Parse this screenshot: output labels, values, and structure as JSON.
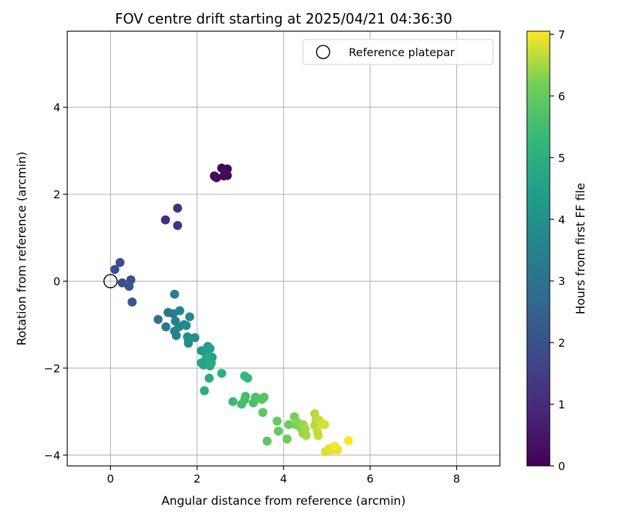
{
  "chart_data": {
    "type": "scatter",
    "title": "FOV centre drift starting at 2025/04/21 04:36:30",
    "xlabel": "Angular distance from reference (arcmin)",
    "ylabel": "Rotation from reference (arcmin)",
    "xlim": [
      -1,
      9
    ],
    "ylim": [
      -4.25,
      5.75
    ],
    "xticks": [
      0,
      2,
      4,
      6,
      8
    ],
    "yticks": [
      -4,
      -2,
      0,
      2,
      4
    ],
    "xtick_labels": [
      "0",
      "2",
      "4",
      "6",
      "8"
    ],
    "ytick_labels": [
      "−4",
      "−2",
      "0",
      "2",
      "4"
    ],
    "grid": true,
    "legend": {
      "placement": "top-right",
      "entries": [
        "Reference platepar"
      ]
    },
    "reference_point": {
      "name": "Reference platepar",
      "x": 0,
      "y": 0,
      "marker": "hollow-circle"
    },
    "colorbar": {
      "label": "Hours from first FF file",
      "colormap": "viridis",
      "range": [
        0,
        7.05
      ],
      "ticks": [
        0,
        1,
        2,
        3,
        4,
        5,
        6,
        7
      ],
      "tick_labels": [
        "0",
        "1",
        "2",
        "3",
        "4",
        "5",
        "6",
        "7"
      ]
    },
    "points": [
      {
        "x": 2.4,
        "y": 2.42,
        "c": 0.05
      },
      {
        "x": 2.45,
        "y": 2.38,
        "c": 0.08
      },
      {
        "x": 2.57,
        "y": 2.6,
        "c": 0.1
      },
      {
        "x": 2.62,
        "y": 2.42,
        "c": 0.12
      },
      {
        "x": 2.7,
        "y": 2.58,
        "c": 0.15
      },
      {
        "x": 2.7,
        "y": 2.43,
        "c": 0.18
      },
      {
        "x": 2.65,
        "y": 2.5,
        "c": 0.2
      },
      {
        "x": 2.42,
        "y": 2.4,
        "c": 0.22
      },
      {
        "x": 1.27,
        "y": 1.41,
        "c": 1.0
      },
      {
        "x": 1.55,
        "y": 1.68,
        "c": 1.1
      },
      {
        "x": 1.55,
        "y": 1.28,
        "c": 1.2
      },
      {
        "x": 0.22,
        "y": 0.43,
        "c": 1.9
      },
      {
        "x": 0.1,
        "y": 0.27,
        "c": 1.95
      },
      {
        "x": 0.27,
        "y": -0.04,
        "c": 2.0
      },
      {
        "x": 0.47,
        "y": 0.03,
        "c": 2.05
      },
      {
        "x": 0.43,
        "y": -0.12,
        "c": 2.1
      },
      {
        "x": 0.5,
        "y": -0.48,
        "c": 2.2
      },
      {
        "x": 1.1,
        "y": -0.88,
        "c": 3.0
      },
      {
        "x": 1.28,
        "y": -1.05,
        "c": 3.1
      },
      {
        "x": 1.33,
        "y": -0.72,
        "c": 3.2
      },
      {
        "x": 1.45,
        "y": -0.75,
        "c": 3.3
      },
      {
        "x": 1.48,
        "y": -0.3,
        "c": 3.4
      },
      {
        "x": 1.5,
        "y": -0.92,
        "c": 3.4
      },
      {
        "x": 1.48,
        "y": -1.15,
        "c": 3.5
      },
      {
        "x": 1.52,
        "y": -1.25,
        "c": 3.5
      },
      {
        "x": 1.58,
        "y": -1.05,
        "c": 3.6
      },
      {
        "x": 1.6,
        "y": -0.68,
        "c": 3.6
      },
      {
        "x": 1.7,
        "y": -1.0,
        "c": 3.7
      },
      {
        "x": 1.75,
        "y": -1.02,
        "c": 3.7
      },
      {
        "x": 1.78,
        "y": -1.28,
        "c": 3.8
      },
      {
        "x": 1.83,
        "y": -0.82,
        "c": 3.8
      },
      {
        "x": 1.8,
        "y": -1.43,
        "c": 3.9
      },
      {
        "x": 1.95,
        "y": -1.3,
        "c": 3.9
      },
      {
        "x": 1.8,
        "y": -1.35,
        "c": 4.0
      },
      {
        "x": 2.1,
        "y": -1.6,
        "c": 4.3
      },
      {
        "x": 2.2,
        "y": -1.65,
        "c": 4.4
      },
      {
        "x": 2.25,
        "y": -1.5,
        "c": 4.4
      },
      {
        "x": 2.3,
        "y": -1.55,
        "c": 4.5
      },
      {
        "x": 2.35,
        "y": -1.75,
        "c": 4.5
      },
      {
        "x": 2.2,
        "y": -1.8,
        "c": 4.6
      },
      {
        "x": 2.28,
        "y": -1.9,
        "c": 4.6
      },
      {
        "x": 2.1,
        "y": -1.88,
        "c": 4.7
      },
      {
        "x": 2.15,
        "y": -1.93,
        "c": 4.7
      },
      {
        "x": 2.3,
        "y": -1.95,
        "c": 4.8
      },
      {
        "x": 2.33,
        "y": -1.88,
        "c": 4.8
      },
      {
        "x": 2.28,
        "y": -2.23,
        "c": 4.9
      },
      {
        "x": 2.17,
        "y": -2.52,
        "c": 4.9
      },
      {
        "x": 2.57,
        "y": -2.12,
        "c": 5.0
      },
      {
        "x": 2.25,
        "y": -1.75,
        "c": 4.8
      },
      {
        "x": 3.1,
        "y": -2.18,
        "c": 5.3
      },
      {
        "x": 3.17,
        "y": -2.23,
        "c": 5.3
      },
      {
        "x": 2.83,
        "y": -2.77,
        "c": 5.4
      },
      {
        "x": 3.03,
        "y": -2.83,
        "c": 5.5
      },
      {
        "x": 3.12,
        "y": -2.65,
        "c": 5.5
      },
      {
        "x": 3.1,
        "y": -2.73,
        "c": 5.6
      },
      {
        "x": 3.3,
        "y": -2.8,
        "c": 5.6
      },
      {
        "x": 3.35,
        "y": -2.67,
        "c": 5.7
      },
      {
        "x": 3.42,
        "y": -2.7,
        "c": 5.7
      },
      {
        "x": 3.5,
        "y": -2.72,
        "c": 5.8
      },
      {
        "x": 3.55,
        "y": -2.67,
        "c": 5.8
      },
      {
        "x": 3.52,
        "y": -3.02,
        "c": 5.9
      },
      {
        "x": 3.62,
        "y": -3.68,
        "c": 5.9
      },
      {
        "x": 3.85,
        "y": -3.22,
        "c": 6.0
      },
      {
        "x": 3.88,
        "y": -3.45,
        "c": 6.0
      },
      {
        "x": 4.08,
        "y": -3.63,
        "c": 6.1
      },
      {
        "x": 4.12,
        "y": -3.3,
        "c": 6.1
      },
      {
        "x": 4.25,
        "y": -3.12,
        "c": 6.2
      },
      {
        "x": 4.28,
        "y": -3.3,
        "c": 6.2
      },
      {
        "x": 4.32,
        "y": -3.25,
        "c": 6.3
      },
      {
        "x": 4.4,
        "y": -3.38,
        "c": 6.3
      },
      {
        "x": 4.45,
        "y": -3.3,
        "c": 6.4
      },
      {
        "x": 4.45,
        "y": -3.5,
        "c": 6.4
      },
      {
        "x": 4.5,
        "y": -3.4,
        "c": 6.5
      },
      {
        "x": 4.52,
        "y": -3.55,
        "c": 6.5
      },
      {
        "x": 4.72,
        "y": -3.05,
        "c": 6.6
      },
      {
        "x": 4.75,
        "y": -3.2,
        "c": 6.6
      },
      {
        "x": 4.72,
        "y": -3.32,
        "c": 6.6
      },
      {
        "x": 4.78,
        "y": -3.45,
        "c": 6.7
      },
      {
        "x": 4.8,
        "y": -3.55,
        "c": 6.7
      },
      {
        "x": 4.82,
        "y": -3.2,
        "c": 6.7
      },
      {
        "x": 4.9,
        "y": -3.28,
        "c": 6.8
      },
      {
        "x": 4.95,
        "y": -3.3,
        "c": 6.8
      },
      {
        "x": 4.97,
        "y": -3.92,
        "c": 6.8
      },
      {
        "x": 5.05,
        "y": -3.85,
        "c": 6.9
      },
      {
        "x": 5.12,
        "y": -3.88,
        "c": 6.9
      },
      {
        "x": 5.2,
        "y": -3.82,
        "c": 6.95
      },
      {
        "x": 5.25,
        "y": -3.88,
        "c": 6.9
      },
      {
        "x": 5.18,
        "y": -3.8,
        "c": 7.0
      },
      {
        "x": 5.5,
        "y": -3.67,
        "c": 7.05
      }
    ]
  }
}
